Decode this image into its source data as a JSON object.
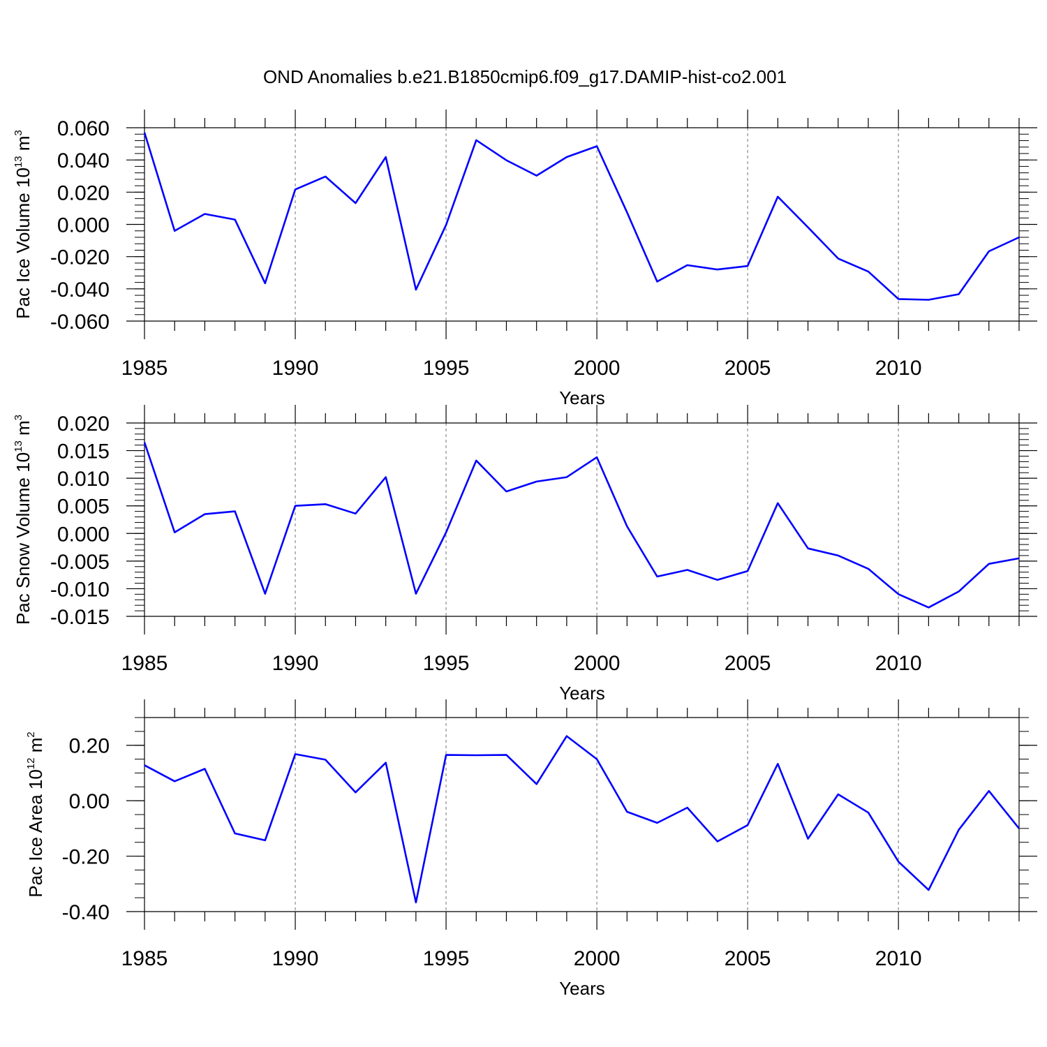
{
  "title": "OND Anomalies b.e21.B1850cmip6.f09_g17.DAMIP-hist-co2.001",
  "colors": {
    "series": "#0000ff",
    "axis": "#000000",
    "grid": "#888888"
  },
  "chart_data": [
    {
      "type": "line",
      "ylabel": {
        "base": "Pac Ice Volume 10",
        "exp": "13",
        "unit": " m",
        "unit_exp": "3"
      },
      "xlabel": "Years",
      "x_ticks": [
        1985,
        1990,
        1995,
        2000,
        2005,
        2010
      ],
      "x_tick_labels": [
        "1985",
        "1990",
        "1995",
        "2000",
        "2005",
        "2010"
      ],
      "xlim": [
        1985,
        2014
      ],
      "ylim": [
        -0.06,
        0.06
      ],
      "y_ticks": [
        0.06,
        0.04,
        0.02,
        0.0,
        -0.02,
        -0.04,
        -0.06
      ],
      "y_tick_labels": [
        "0.060",
        "0.040",
        "0.020",
        "0.000",
        "-0.020",
        "-0.040",
        "-0.060"
      ],
      "y_minor_step": 0.004,
      "x": [
        1985,
        1986,
        1987,
        1988,
        1989,
        1990,
        1991,
        1992,
        1993,
        1994,
        1995,
        1996,
        1997,
        1998,
        1999,
        2000,
        2001,
        2002,
        2003,
        2004,
        2005,
        2006,
        2007,
        2008,
        2009,
        2010,
        2011,
        2012,
        2013,
        2014
      ],
      "values": [
        0.057,
        -0.004,
        0.0065,
        0.003,
        -0.0365,
        0.0217,
        0.0297,
        0.0132,
        0.0418,
        -0.0405,
        -0.0003,
        0.0523,
        0.0398,
        0.0303,
        0.0418,
        0.0485,
        0.0075,
        -0.0355,
        -0.0253,
        -0.028,
        -0.0258,
        0.0172,
        -0.0018,
        -0.0212,
        -0.0293,
        -0.0463,
        -0.0468,
        -0.0433,
        -0.0167,
        -0.008
      ]
    },
    {
      "type": "line",
      "ylabel": {
        "base": "Pac Snow Volume 10",
        "exp": "13",
        "unit": " m",
        "unit_exp": "3"
      },
      "xlabel": "Years",
      "x_ticks": [
        1985,
        1990,
        1995,
        2000,
        2005,
        2010
      ],
      "x_tick_labels": [
        "1985",
        "1990",
        "1995",
        "2000",
        "2005",
        "2010"
      ],
      "xlim": [
        1985,
        2014
      ],
      "ylim": [
        -0.015,
        0.02
      ],
      "y_ticks": [
        0.02,
        0.015,
        0.01,
        0.005,
        0.0,
        -0.005,
        -0.01,
        -0.015
      ],
      "y_tick_labels": [
        "0.020",
        "0.015",
        "0.010",
        "0.005",
        "0.000",
        "-0.005",
        "-0.010",
        "-0.015"
      ],
      "y_minor_step": 0.001,
      "x": [
        1985,
        1986,
        1987,
        1988,
        1989,
        1990,
        1991,
        1992,
        1993,
        1994,
        1995,
        1996,
        1997,
        1998,
        1999,
        2000,
        2001,
        2002,
        2003,
        2004,
        2005,
        2006,
        2007,
        2008,
        2009,
        2010,
        2011,
        2012,
        2013,
        2014
      ],
      "values": [
        0.0165,
        0.0002,
        0.0035,
        0.004,
        -0.0109,
        0.005,
        0.0053,
        0.0036,
        0.0102,
        -0.0109,
        0.0002,
        0.0132,
        0.0076,
        0.0094,
        0.0102,
        0.0138,
        0.0013,
        -0.0078,
        -0.0066,
        -0.0084,
        -0.0068,
        0.0055,
        -0.0027,
        -0.004,
        -0.0064,
        -0.011,
        -0.0134,
        -0.0105,
        -0.0055,
        -0.0045
      ]
    },
    {
      "type": "line",
      "ylabel": {
        "base": "Pac Ice Area 10",
        "exp": "12",
        "unit": " m",
        "unit_exp": "2"
      },
      "xlabel": "Years",
      "x_ticks": [
        1985,
        1990,
        1995,
        2000,
        2005,
        2010
      ],
      "x_tick_labels": [
        "1985",
        "1990",
        "1995",
        "2000",
        "2005",
        "2010"
      ],
      "xlim": [
        1985,
        2014
      ],
      "ylim": [
        -0.4,
        0.3
      ],
      "y_ticks": [
        0.2,
        0.0,
        -0.2,
        -0.4
      ],
      "y_tick_labels": [
        "0.20",
        "0.00",
        "-0.20",
        "-0.40"
      ],
      "y_minor_step": 0.05,
      "x": [
        1985,
        1986,
        1987,
        1988,
        1989,
        1990,
        1991,
        1992,
        1993,
        1994,
        1995,
        1996,
        1997,
        1998,
        1999,
        2000,
        2001,
        2002,
        2003,
        2004,
        2005,
        2006,
        2007,
        2008,
        2009,
        2010,
        2011,
        2012,
        2013,
        2014
      ],
      "values": [
        0.128,
        0.07,
        0.115,
        -0.118,
        -0.143,
        0.168,
        0.148,
        0.03,
        0.137,
        -0.367,
        0.165,
        0.164,
        0.165,
        0.06,
        0.233,
        0.15,
        -0.04,
        -0.08,
        -0.025,
        -0.147,
        -0.088,
        0.133,
        -0.137,
        0.023,
        -0.043,
        -0.22,
        -0.322,
        -0.105,
        0.035,
        -0.1
      ]
    }
  ]
}
